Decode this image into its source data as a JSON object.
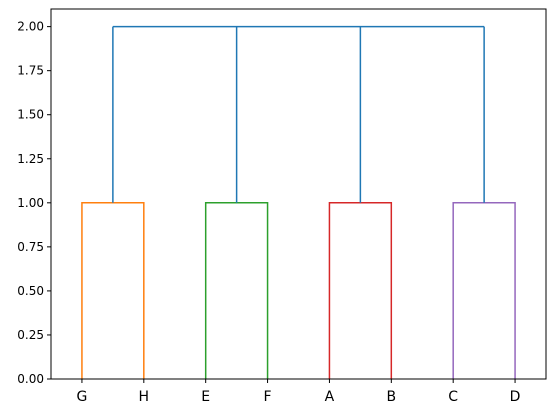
{
  "chart_data": {
    "type": "dendrogram",
    "title": "",
    "xlabel": "",
    "ylabel": "",
    "ylim": [
      0,
      2.1
    ],
    "y_ticks": [
      "0.00",
      "0.25",
      "0.50",
      "0.75",
      "1.00",
      "1.25",
      "1.50",
      "1.75",
      "2.00"
    ],
    "grid": false,
    "leaves": [
      "G",
      "H",
      "E",
      "F",
      "A",
      "B",
      "C",
      "D"
    ],
    "clusters": [
      {
        "members": [
          "G",
          "H"
        ],
        "height": 1.0,
        "color": "#ff7f0e"
      },
      {
        "members": [
          "E",
          "F"
        ],
        "height": 1.0,
        "color": "#2ca02c"
      },
      {
        "members": [
          "A",
          "B"
        ],
        "height": 1.0,
        "color": "#d62728"
      },
      {
        "members": [
          "C",
          "D"
        ],
        "height": 1.0,
        "color": "#9467bd"
      }
    ],
    "root": {
      "height": 2.0,
      "color": "#1f77b4"
    }
  }
}
